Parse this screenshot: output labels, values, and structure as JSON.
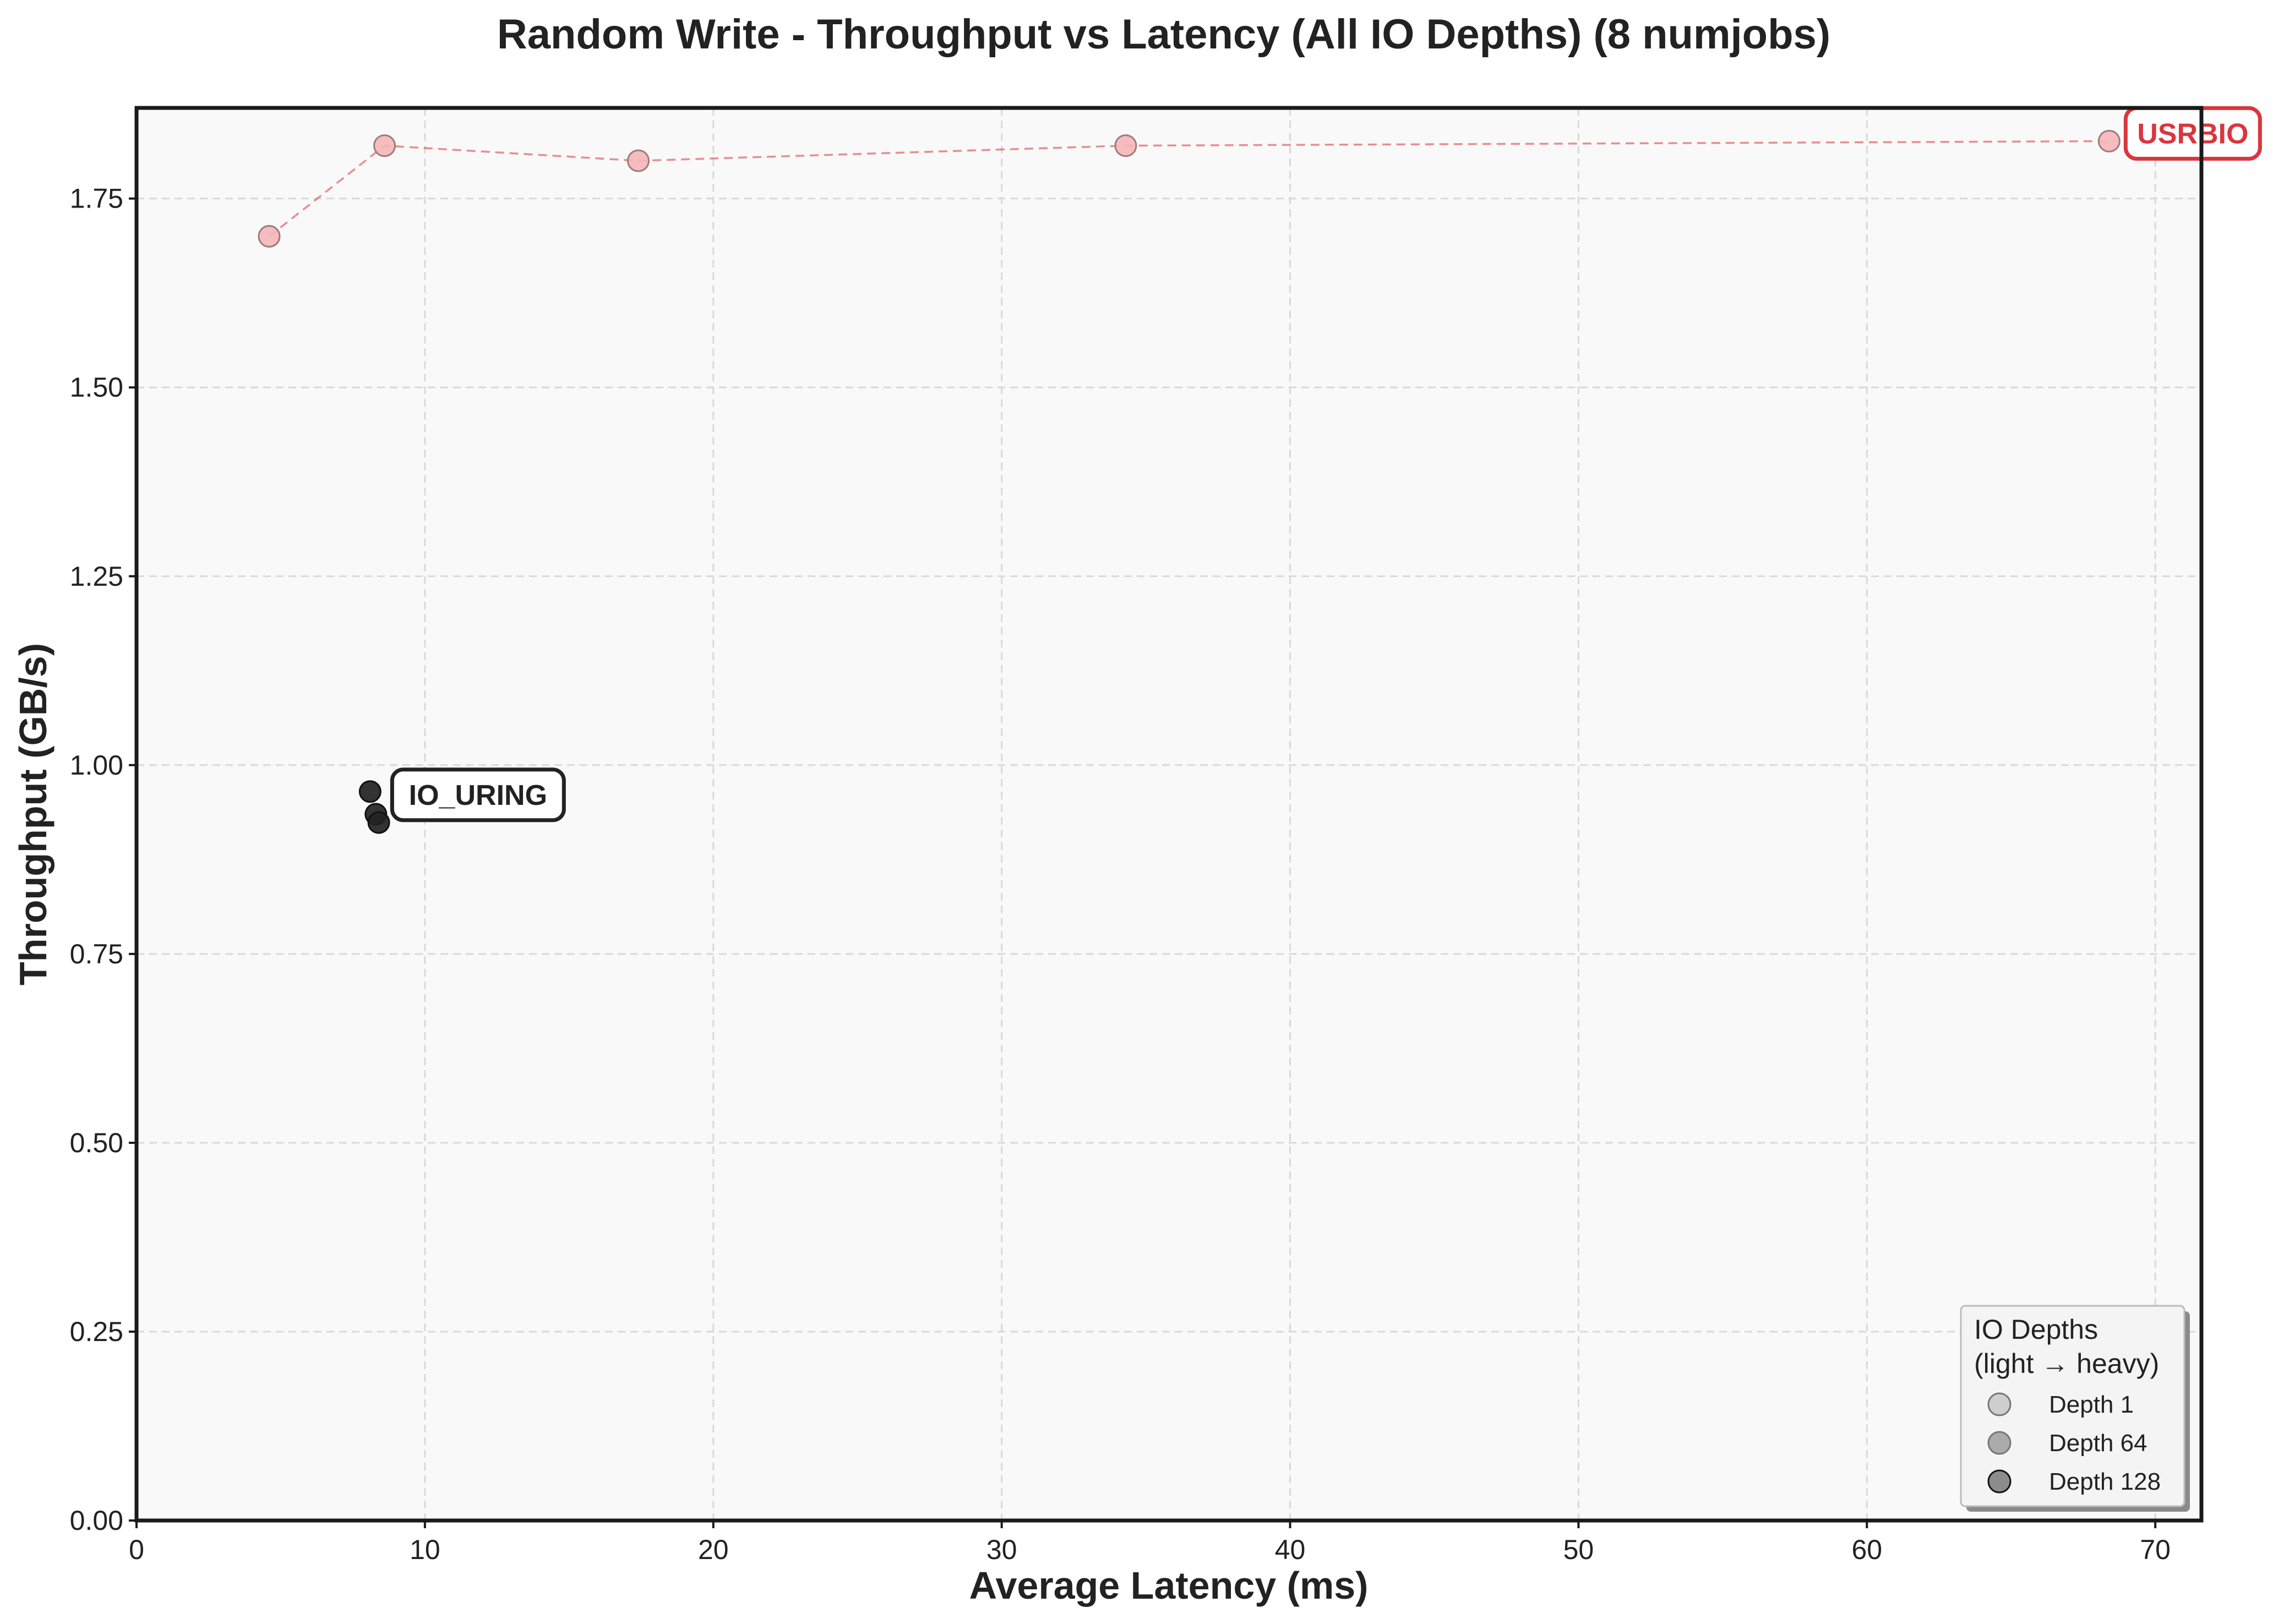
{
  "chart_data": {
    "type": "scatter",
    "title": "Random Write - Throughput vs Latency (All IO Depths) (8 numjobs)",
    "xlabel": "Average Latency (ms)",
    "ylabel": "Throughput (GB/s)",
    "xlim": [
      0,
      71.6
    ],
    "ylim": [
      0,
      1.87
    ],
    "x_ticks": [
      "0",
      "10",
      "20",
      "30",
      "40",
      "50",
      "60",
      "70"
    ],
    "y_ticks": [
      "0.00",
      "0.25",
      "0.50",
      "0.75",
      "1.00",
      "1.25",
      "1.50",
      "1.75"
    ],
    "grid": true,
    "series": [
      {
        "name": "USRBIO",
        "color": "#d9363e",
        "marker_color": "#f4b6b8",
        "line_style": "dashed",
        "points": [
          {
            "x": 4.6,
            "y": 1.7
          },
          {
            "x": 8.6,
            "y": 1.82
          },
          {
            "x": 17.4,
            "y": 1.8
          },
          {
            "x": 34.3,
            "y": 1.82
          },
          {
            "x": 68.4,
            "y": 1.826
          }
        ]
      },
      {
        "name": "IO_URING",
        "color": "#222222",
        "marker_color": "#222222",
        "line_style": "none",
        "points": [
          {
            "x": 8.1,
            "y": 0.965
          },
          {
            "x": 8.3,
            "y": 0.935
          },
          {
            "x": 8.4,
            "y": 0.924
          }
        ]
      }
    ],
    "legend": {
      "title_lines": [
        "IO Depths",
        "(light → heavy)"
      ],
      "placement": "bottom-right",
      "items": [
        {
          "label": "Depth 1",
          "color": "#cfcfcf"
        },
        {
          "label": "Depth 64",
          "color": "#aaaaaa"
        },
        {
          "label": "Depth 128",
          "color": "#8c8c8c"
        }
      ]
    }
  }
}
